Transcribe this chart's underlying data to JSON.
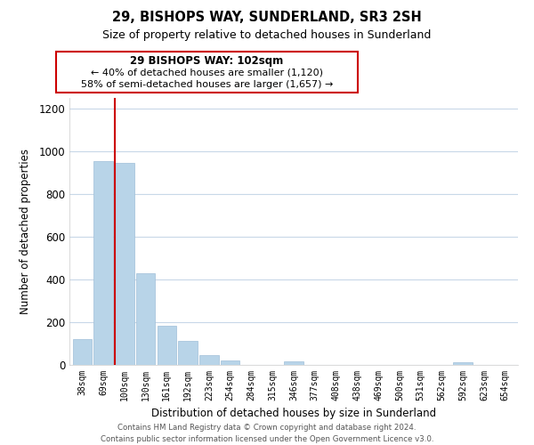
{
  "title": "29, BISHOPS WAY, SUNDERLAND, SR3 2SH",
  "subtitle": "Size of property relative to detached houses in Sunderland",
  "xlabel": "Distribution of detached houses by size in Sunderland",
  "ylabel": "Number of detached properties",
  "categories": [
    "38sqm",
    "69sqm",
    "100sqm",
    "130sqm",
    "161sqm",
    "192sqm",
    "223sqm",
    "254sqm",
    "284sqm",
    "315sqm",
    "346sqm",
    "377sqm",
    "408sqm",
    "438sqm",
    "469sqm",
    "500sqm",
    "531sqm",
    "562sqm",
    "592sqm",
    "623sqm",
    "654sqm"
  ],
  "values": [
    120,
    955,
    945,
    430,
    185,
    112,
    47,
    20,
    0,
    0,
    17,
    0,
    0,
    0,
    0,
    0,
    0,
    0,
    12,
    0,
    0
  ],
  "bar_color": "#b8d4e8",
  "bar_edge_color": "#a0bfd8",
  "vline_color": "#cc0000",
  "vline_index": 2,
  "annotation_title": "29 BISHOPS WAY: 102sqm",
  "annotation_line1": "← 40% of detached houses are smaller (1,120)",
  "annotation_line2": "58% of semi-detached houses are larger (1,657) →",
  "annotation_box_color": "#ffffff",
  "annotation_box_edge": "#cc0000",
  "ylim": [
    0,
    1250
  ],
  "yticks": [
    0,
    200,
    400,
    600,
    800,
    1000,
    1200
  ],
  "footer_line1": "Contains HM Land Registry data © Crown copyright and database right 2024.",
  "footer_line2": "Contains public sector information licensed under the Open Government Licence v3.0.",
  "bg_color": "#ffffff",
  "grid_color": "#c8d8e8"
}
